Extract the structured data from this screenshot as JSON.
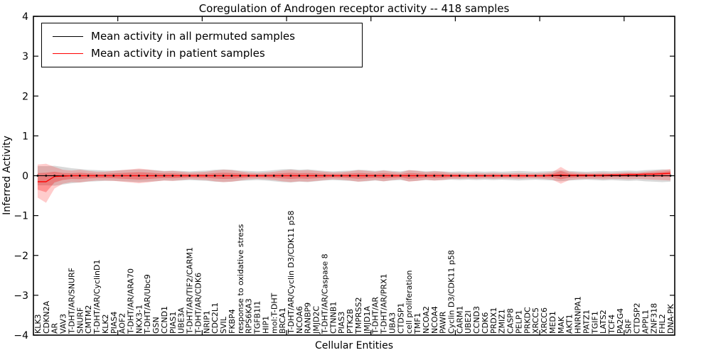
{
  "chart": {
    "title": "Coregulation of Androgen receptor activity -- 418 samples",
    "xlabel": "Cellular Entities",
    "ylabel": "Inferred Activity"
  },
  "chart_data": {
    "type": "line",
    "title": "Coregulation of Androgen receptor activity -- 418 samples",
    "xlabel": "Cellular Entities",
    "ylabel": "Inferred Activity",
    "ylim": [
      -4,
      4
    ],
    "yticks": [
      4,
      3,
      2,
      1,
      0,
      -1,
      -2,
      -3,
      -4
    ],
    "grid": false,
    "legend_position": "upper left",
    "categories": [
      "KLK3",
      "CDKN2A",
      "AR",
      "VAV3",
      "T-DHT/AR/SNURF",
      "SNURF",
      "CMTM2",
      "T-DHT/AR/CyclinD1",
      "KLK2",
      "PIAS4",
      "AOF2",
      "T-DHT/AR/ARA70",
      "NKX3-1",
      "T-DHT/AR/Ubc9",
      "GSN",
      "CCND1",
      "PIAS1",
      "UBE3A",
      "T-DHT/AR/TIF2/CARM1",
      "T-DHT/AR/CDK6",
      "NRIP1",
      "CDC2L1",
      "SVIL",
      "FKBP4",
      "response to oxidative stress",
      "RPS6KA3",
      "TGFB1I1",
      "HIP1",
      "mol:T-DHT",
      "BRCA1",
      "T-DHT/AR/Cyclin D3/CDK11 p58",
      "NCOA6",
      "RANBP9",
      "JMJD2C",
      "T-DHT/AR/Caspase 8",
      "CTNNB1",
      "PIAS3",
      "PTK2B",
      "TMPRSS2",
      "JMJD1A",
      "T-DHT/AR",
      "T-DHT/AR/PRX1",
      "UBA3",
      "CTDSP1",
      "cell proliferation",
      "TMF1",
      "NCOA2",
      "NCOA4",
      "PAWR",
      "Cyclin D3/CDK11 p58",
      "CARM1",
      "UBE2I",
      "CCND3",
      "CDK6",
      "PRDX1",
      "ZMIZ1",
      "CASP8",
      "PELP1",
      "PRKDC",
      "XRCC5",
      "XRCC6",
      "MED1",
      "MAK",
      "AKT1",
      "HNRNPA1",
      "PATZ1",
      "TGIF1",
      "LATS2",
      "TCF4",
      "PA2G4",
      "SRF",
      "CTDSP2",
      "APPL1",
      "ZNF318",
      "FHL2",
      "DNA-PK"
    ],
    "series": [
      {
        "name": "Mean activity in all permuted samples",
        "color": "#000000",
        "marker": "dot",
        "values": [
          0,
          0,
          0,
          0,
          0,
          0,
          0,
          0,
          0,
          0,
          0,
          0,
          0,
          0,
          0,
          0,
          0,
          0,
          0,
          0,
          0,
          0,
          0,
          0,
          0,
          0,
          0,
          0,
          0,
          0,
          0,
          0,
          0,
          0,
          0,
          0,
          0,
          0,
          0,
          0,
          0,
          0,
          0,
          0,
          0,
          0,
          0,
          0,
          0,
          0,
          0,
          0,
          0,
          0,
          0,
          0,
          0,
          0,
          0,
          0,
          0,
          0,
          0,
          0,
          0,
          0,
          0,
          0,
          0,
          0,
          0,
          0,
          0,
          0,
          0,
          0
        ],
        "band": {
          "fill": "rgba(0,0,0,0.15)",
          "upper": [
            0.24,
            0.24,
            0.25,
            0.22,
            0.19,
            0.17,
            0.15,
            0.14,
            0.13,
            0.13,
            0.14,
            0.15,
            0.16,
            0.15,
            0.14,
            0.12,
            0.13,
            0.12,
            0.11,
            0.12,
            0.13,
            0.15,
            0.16,
            0.15,
            0.13,
            0.12,
            0.11,
            0.12,
            0.14,
            0.16,
            0.17,
            0.15,
            0.16,
            0.14,
            0.12,
            0.11,
            0.12,
            0.13,
            0.15,
            0.14,
            0.12,
            0.14,
            0.12,
            0.11,
            0.14,
            0.13,
            0.11,
            0.12,
            0.11,
            0.1,
            0.11,
            0.1,
            0.11,
            0.1,
            0.11,
            0.1,
            0.11,
            0.12,
            0.11,
            0.1,
            0.11,
            0.12,
            0.14,
            0.12,
            0.11,
            0.1,
            0.11,
            0.12,
            0.11,
            0.12,
            0.13,
            0.12,
            0.14,
            0.15,
            0.16,
            0.15
          ],
          "lower": [
            -0.24,
            -0.24,
            -0.25,
            -0.22,
            -0.19,
            -0.17,
            -0.15,
            -0.14,
            -0.13,
            -0.13,
            -0.14,
            -0.15,
            -0.16,
            -0.15,
            -0.14,
            -0.12,
            -0.13,
            -0.12,
            -0.11,
            -0.12,
            -0.13,
            -0.15,
            -0.16,
            -0.15,
            -0.13,
            -0.12,
            -0.11,
            -0.12,
            -0.14,
            -0.16,
            -0.17,
            -0.15,
            -0.16,
            -0.14,
            -0.12,
            -0.11,
            -0.12,
            -0.13,
            -0.15,
            -0.14,
            -0.12,
            -0.14,
            -0.12,
            -0.11,
            -0.14,
            -0.13,
            -0.11,
            -0.12,
            -0.11,
            -0.1,
            -0.11,
            -0.1,
            -0.11,
            -0.1,
            -0.11,
            -0.1,
            -0.11,
            -0.12,
            -0.11,
            -0.1,
            -0.11,
            -0.12,
            -0.14,
            -0.12,
            -0.11,
            -0.1,
            -0.11,
            -0.12,
            -0.11,
            -0.12,
            -0.13,
            -0.12,
            -0.14,
            -0.15,
            -0.16,
            -0.15
          ]
        }
      },
      {
        "name": "Mean activity in patient samples",
        "color": "#ff0000",
        "marker": "none",
        "values": [
          -0.15,
          -0.15,
          -0.02,
          -0.01,
          0,
          0,
          0,
          0,
          0,
          0,
          0,
          0,
          0,
          0,
          0,
          0,
          0,
          0,
          0,
          0,
          0,
          0,
          0,
          0,
          0,
          0,
          0,
          0,
          0,
          0,
          0,
          0,
          0,
          0,
          0,
          0,
          0,
          0,
          0,
          0,
          0,
          0,
          0,
          0,
          0,
          0,
          0,
          0,
          0,
          0,
          0,
          0,
          0,
          0,
          0,
          0,
          0,
          0,
          0,
          0,
          0,
          0.01,
          0.02,
          0.01,
          0.01,
          0.01,
          0.01,
          0.01,
          0.02,
          0.02,
          0.03,
          0.03,
          0.04,
          0.04,
          0.05,
          0.06
        ],
        "band": {
          "fill": "rgba(255,0,0,0.20)",
          "inner_fill": "rgba(255,0,0,0.28)",
          "upper": [
            0.28,
            0.3,
            0.22,
            0.15,
            0.13,
            0.15,
            0.12,
            0.1,
            0.1,
            0.12,
            0.14,
            0.16,
            0.18,
            0.16,
            0.13,
            0.11,
            0.12,
            0.1,
            0.08,
            0.09,
            0.1,
            0.13,
            0.15,
            0.14,
            0.11,
            0.08,
            0.07,
            0.08,
            0.1,
            0.13,
            0.15,
            0.13,
            0.14,
            0.12,
            0.1,
            0.08,
            0.09,
            0.11,
            0.14,
            0.12,
            0.1,
            0.13,
            0.1,
            0.08,
            0.14,
            0.12,
            0.09,
            0.11,
            0.1,
            0.07,
            0.07,
            0.06,
            0.07,
            0.06,
            0.07,
            0.06,
            0.06,
            0.07,
            0.06,
            0.06,
            0.07,
            0.09,
            0.22,
            0.1,
            0.08,
            0.07,
            0.07,
            0.08,
            0.07,
            0.08,
            0.09,
            0.08,
            0.1,
            0.12,
            0.14,
            0.17
          ],
          "lower": [
            -0.55,
            -0.68,
            -0.32,
            -0.2,
            -0.16,
            -0.17,
            -0.14,
            -0.12,
            -0.12,
            -0.13,
            -0.15,
            -0.17,
            -0.19,
            -0.17,
            -0.14,
            -0.12,
            -0.13,
            -0.11,
            -0.09,
            -0.1,
            -0.11,
            -0.14,
            -0.16,
            -0.15,
            -0.12,
            -0.09,
            -0.08,
            -0.09,
            -0.11,
            -0.14,
            -0.16,
            -0.14,
            -0.15,
            -0.13,
            -0.11,
            -0.09,
            -0.1,
            -0.12,
            -0.15,
            -0.13,
            -0.11,
            -0.14,
            -0.11,
            -0.09,
            -0.15,
            -0.13,
            -0.1,
            -0.12,
            -0.11,
            -0.08,
            -0.08,
            -0.07,
            -0.08,
            -0.07,
            -0.08,
            -0.07,
            -0.07,
            -0.08,
            -0.07,
            -0.07,
            -0.08,
            -0.1,
            -0.2,
            -0.11,
            -0.09,
            -0.08,
            -0.08,
            -0.09,
            -0.08,
            -0.08,
            -0.09,
            -0.08,
            -0.09,
            -0.1,
            -0.11,
            -0.12
          ]
        }
      }
    ]
  }
}
